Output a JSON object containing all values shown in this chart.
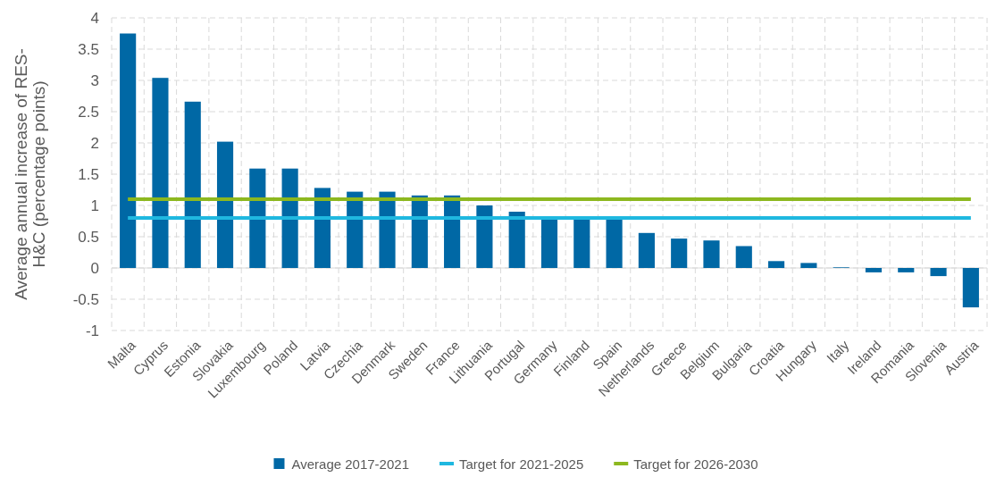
{
  "chart_data": {
    "type": "bar",
    "ylabel": "Average annual increase of RES-H&C (percentage points)",
    "categories": [
      "Malta",
      "Cyprus",
      "Estonia",
      "Slovakia",
      "Luxembourg",
      "Poland",
      "Latvia",
      "Czechia",
      "Denmark",
      "Sweden",
      "France",
      "Lithuania",
      "Portugal",
      "Germany",
      "Finland",
      "Spain",
      "Netherlands",
      "Greece",
      "Belgium",
      "Bulgaria",
      "Croatia",
      "Hungary",
      "Italy",
      "Ireland",
      "Romania",
      "Slovenia",
      "Austria"
    ],
    "series": [
      {
        "name": "Average 2017-2021",
        "color": "#0068a5",
        "values": [
          3.75,
          3.04,
          2.66,
          2.02,
          1.59,
          1.59,
          1.28,
          1.22,
          1.22,
          1.16,
          1.16,
          1.0,
          0.9,
          0.8,
          0.8,
          0.79,
          0.56,
          0.47,
          0.44,
          0.35,
          0.11,
          0.08,
          0.01,
          -0.07,
          -0.07,
          -0.13,
          -0.63
        ]
      },
      {
        "name": "Target for 2021-2025",
        "type": "line",
        "color": "#1fb8e0",
        "values": [
          0.8,
          0.8,
          0.8,
          0.8,
          0.8,
          0.8,
          0.8,
          0.8,
          0.8,
          0.8,
          0.8,
          0.8,
          0.8,
          0.8,
          0.8,
          0.8,
          0.8,
          0.8,
          0.8,
          0.8,
          0.8,
          0.8,
          0.8,
          0.8,
          0.8,
          0.8,
          0.8
        ]
      },
      {
        "name": "Target for 2026-2030",
        "type": "line",
        "color": "#8db81f",
        "values": [
          1.1,
          1.1,
          1.1,
          1.1,
          1.1,
          1.1,
          1.1,
          1.1,
          1.1,
          1.1,
          1.1,
          1.1,
          1.1,
          1.1,
          1.1,
          1.1,
          1.1,
          1.1,
          1.1,
          1.1,
          1.1,
          1.1,
          1.1,
          1.1,
          1.1,
          1.1,
          1.1
        ]
      }
    ],
    "ylim": [
      -1,
      4
    ],
    "yticks": [
      -1,
      -0.5,
      0,
      0.5,
      1,
      1.5,
      2,
      2.5,
      3,
      3.5,
      4
    ],
    "grid": true,
    "legend": "bottom",
    "line_style": "solid",
    "marker": "none"
  }
}
